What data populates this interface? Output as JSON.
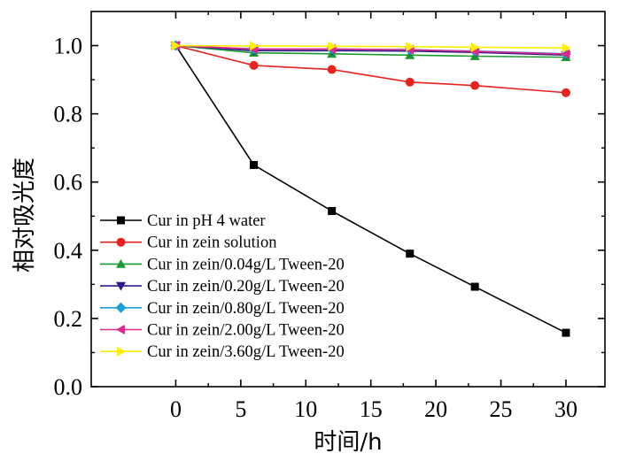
{
  "chart_data": {
    "type": "line",
    "xlabel": "时间/h",
    "ylabel": "相对吸光度",
    "xlim": [
      -6.5,
      33
    ],
    "ylim": [
      0,
      1.1
    ],
    "x_ticks": [
      0,
      5,
      10,
      15,
      20,
      25,
      30
    ],
    "y_ticks": [
      0.0,
      0.2,
      0.4,
      0.6,
      0.8,
      1.0
    ],
    "x_tick_labels": [
      "0",
      "5",
      "10",
      "15",
      "20",
      "25",
      "30"
    ],
    "y_tick_labels": [
      "0.0",
      "0.2",
      "0.4",
      "0.6",
      "0.8",
      "1.0"
    ],
    "legend_position": "bottom-left",
    "x": [
      0,
      6,
      12,
      18,
      23,
      30
    ],
    "series": [
      {
        "name": "Cur in pH 4 water",
        "color": "#000000",
        "marker": "square",
        "values": [
          1.0,
          0.65,
          0.515,
          0.39,
          0.293,
          0.158
        ]
      },
      {
        "name": "Cur in zein solution",
        "color": "#e8231e",
        "marker": "circle",
        "values": [
          1.0,
          0.942,
          0.93,
          0.893,
          0.883,
          0.862
        ]
      },
      {
        "name": "Cur in zein/0.04g/L Tween-20",
        "color": "#1a9a31",
        "marker": "triangle-up",
        "values": [
          1.0,
          0.979,
          0.976,
          0.972,
          0.969,
          0.966
        ]
      },
      {
        "name": "Cur in zein/0.20g/L Tween-20",
        "color": "#2d1a88",
        "marker": "triangle-down",
        "values": [
          1.0,
          0.985,
          0.985,
          0.984,
          0.98,
          0.972
        ]
      },
      {
        "name": "Cur in zein/0.80g/L Tween-20",
        "color": "#18a0dc",
        "marker": "diamond",
        "values": [
          1.0,
          0.99,
          0.99,
          0.988,
          0.984,
          0.976
        ]
      },
      {
        "name": "Cur in zein/2.00g/L Tween-20",
        "color": "#e2288a",
        "marker": "triangle-left",
        "values": [
          1.0,
          0.99,
          0.99,
          0.988,
          0.983,
          0.975
        ]
      },
      {
        "name": "Cur in zein/3.60g/L Tween-20",
        "color": "#ffee00",
        "marker": "triangle-right",
        "values": [
          1.0,
          0.999,
          0.998,
          0.997,
          0.995,
          0.993
        ]
      }
    ]
  }
}
